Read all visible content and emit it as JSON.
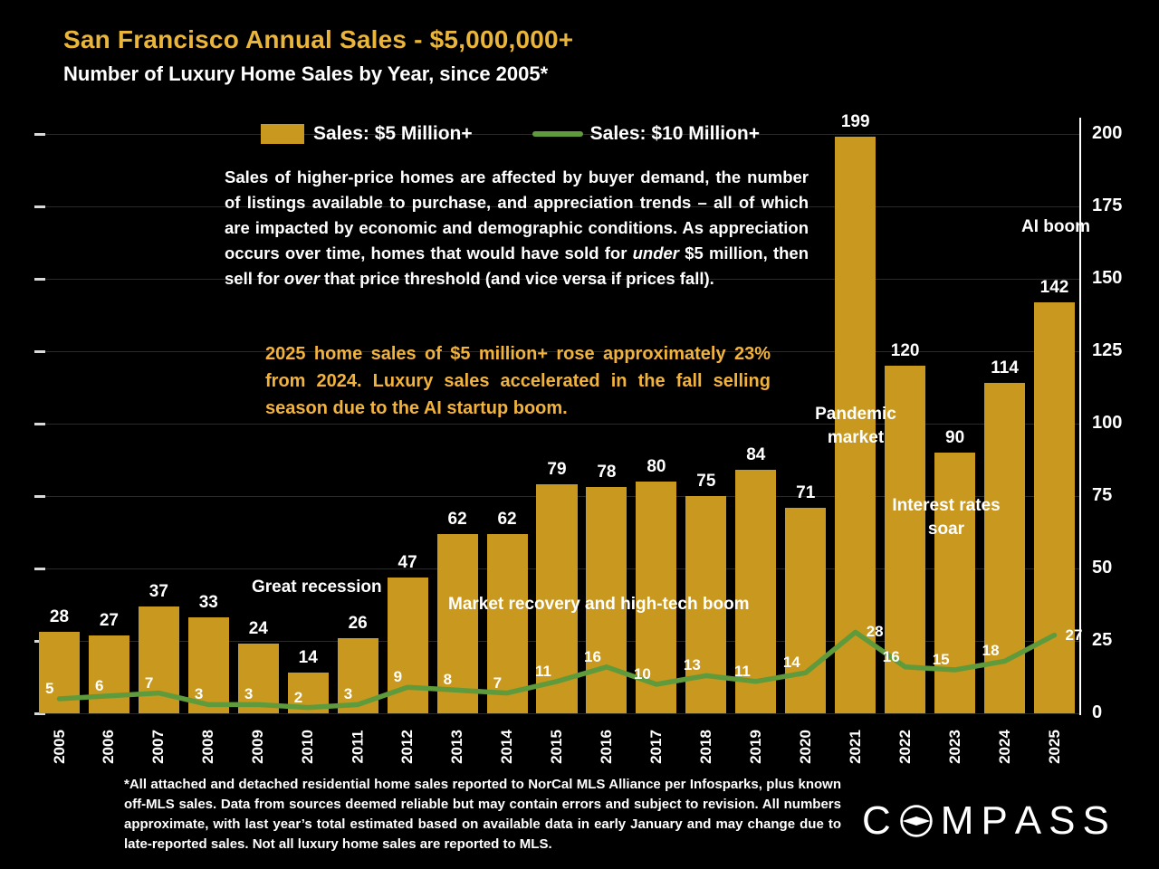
{
  "title": "San Francisco Annual Sales - $5,000,000+",
  "subtitle": "Number of Luxury Home Sales by Year, since 2005*",
  "legend": [
    {
      "label": "Sales: $5 Million+",
      "swatch": "bar",
      "color": "#C9981F"
    },
    {
      "label": "Sales: $10 Million+",
      "swatch": "line",
      "color": "#5F9B3C"
    }
  ],
  "paragraph": {
    "p1": "Sales of higher-price homes are affected by buyer demand, the number of listings available to purchase, and appreciation trends – all of which are impacted by economic and demographic conditions. As appreciation occurs over time, homes that would have sold for ",
    "i1": "under",
    "p2": " $5 million, then sell for ",
    "i2": "over",
    "p3": " that price threshold (and vice versa if prices fall)."
  },
  "highlight": "2025 home sales of $5 million+ rose approximately 23% from 2024. Luxury sales accelerated in the fall selling season due to the AI startup boom.",
  "footnote": "*All attached and detached residential home sales reported to NorCal MLS Alliance per Infosparks, plus known off-MLS sales. Data from sources deemed reliable but may contain errors and subject to revision. All numbers approximate, with last year’s total estimated based on available data in early January and may change due to late-reported sales. Not all luxury home sales are reported to MLS.",
  "brand": "COMPASS",
  "chart_data": {
    "type": "bar",
    "title": "San Francisco Annual Sales - $5,000,000+",
    "subtitle": "Number of Luxury Home Sales by Year, since 2005*",
    "categories": [
      "2005",
      "2006",
      "2007",
      "2008",
      "2009",
      "2010",
      "2011",
      "2012",
      "2013",
      "2014",
      "2015",
      "2016",
      "2017",
      "2018",
      "2019",
      "2020",
      "2021",
      "2022",
      "2023",
      "2024",
      "2025"
    ],
    "series": [
      {
        "name": "Sales: $5 Million+",
        "type": "bar",
        "color": "#C9981F",
        "values": [
          28,
          27,
          37,
          33,
          24,
          14,
          26,
          47,
          62,
          62,
          79,
          78,
          80,
          75,
          84,
          71,
          199,
          120,
          90,
          114,
          142
        ]
      },
      {
        "name": "Sales: $10 Million+",
        "type": "line",
        "color": "#5F9B3C",
        "values": [
          5,
          6,
          7,
          3,
          3,
          2,
          3,
          9,
          8,
          7,
          11,
          16,
          10,
          13,
          11,
          14,
          28,
          16,
          15,
          18,
          27
        ]
      }
    ],
    "xlabel": "",
    "ylabel": "",
    "ylim": [
      0,
      200
    ],
    "yticks": [
      0,
      25,
      50,
      75,
      100,
      125,
      150,
      175,
      200
    ],
    "grid": true,
    "legend_position": "top",
    "annotations": {
      "great_recession": "Great recession",
      "market_recovery": "Market recovery and high-tech boom",
      "pandemic_market": "Pandemic market",
      "interest_rates": "Interest rates soar",
      "ai_boom": "AI boom"
    }
  }
}
